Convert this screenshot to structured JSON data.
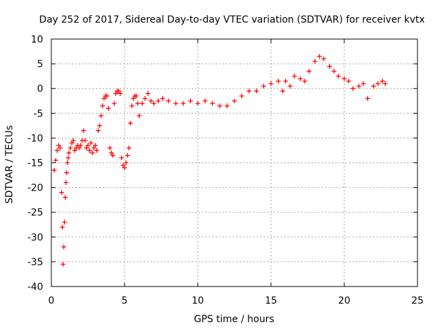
{
  "chart_data": {
    "type": "scatter",
    "title": "Day 252 of 2017, Sidereal Day-to-day VTEC variation (SDTVAR) for receiver kvtx",
    "xlabel": "GPS time / hours",
    "ylabel": "SDTVAR / TECUs",
    "xlim": [
      0,
      25
    ],
    "ylim": [
      -40,
      10
    ],
    "xticks": [
      0,
      5,
      10,
      15,
      20,
      25
    ],
    "yticks": [
      -40,
      -35,
      -30,
      -25,
      -20,
      -15,
      -10,
      -5,
      0,
      5,
      10
    ],
    "grid": true,
    "legend": "none",
    "marker": "+",
    "color": "#ff0000",
    "series": [
      {
        "name": "SDTVAR",
        "x": [
          0.2,
          0.3,
          0.4,
          0.5,
          0.6,
          0.7,
          0.75,
          0.8,
          0.85,
          0.9,
          0.95,
          1.0,
          1.05,
          1.1,
          1.15,
          1.2,
          1.3,
          1.4,
          1.5,
          1.6,
          1.7,
          1.8,
          1.9,
          2.0,
          2.1,
          2.2,
          2.3,
          2.4,
          2.5,
          2.6,
          2.7,
          2.8,
          2.9,
          3.0,
          3.1,
          3.2,
          3.3,
          3.4,
          3.5,
          3.6,
          3.7,
          3.8,
          3.9,
          4.0,
          4.1,
          4.2,
          4.3,
          4.4,
          4.5,
          4.6,
          4.7,
          4.8,
          4.9,
          5.0,
          5.1,
          5.2,
          5.3,
          5.4,
          5.5,
          5.6,
          5.7,
          5.8,
          5.9,
          6.0,
          6.2,
          6.4,
          6.6,
          6.8,
          7.0,
          7.3,
          7.6,
          8.0,
          8.5,
          9.0,
          9.5,
          10.0,
          10.5,
          11.0,
          11.5,
          12.0,
          12.5,
          13.0,
          13.5,
          14.0,
          14.5,
          15.0,
          15.5,
          15.8,
          16.0,
          16.3,
          16.6,
          17.0,
          17.3,
          17.6,
          18.0,
          18.3,
          18.6,
          19.0,
          19.3,
          19.6,
          20.0,
          20.3,
          20.6,
          21.0,
          21.3,
          21.6,
          22.0,
          22.3,
          22.6,
          22.8
        ],
        "y": [
          -16.5,
          -14.5,
          -12.5,
          -11.5,
          -12.0,
          -21.0,
          -28.0,
          -35.5,
          -32.0,
          -27.0,
          -22.0,
          -19.0,
          -17.0,
          -15.0,
          -14.0,
          -13.0,
          -12.0,
          -11.0,
          -10.5,
          -12.5,
          -12.0,
          -11.5,
          -12.0,
          -11.5,
          -10.5,
          -8.5,
          -10.5,
          -12.0,
          -11.5,
          -12.5,
          -11.0,
          -13.0,
          -12.0,
          -11.5,
          -12.5,
          -8.5,
          -7.5,
          -5.5,
          -3.5,
          -2.0,
          -1.5,
          -1.5,
          -4.0,
          -12.0,
          -13.0,
          -13.5,
          -3.0,
          -1.0,
          -0.5,
          -0.5,
          -1.0,
          -14.0,
          -15.5,
          -16.0,
          -15.0,
          -13.5,
          -12.0,
          -7.0,
          -3.5,
          -2.0,
          -1.5,
          -1.5,
          -3.0,
          -5.5,
          -3.0,
          -2.0,
          -1.0,
          -2.5,
          -3.0,
          -2.5,
          -2.0,
          -2.5,
          -3.0,
          -3.0,
          -2.5,
          -3.0,
          -2.5,
          -3.0,
          -3.5,
          -3.5,
          -2.5,
          -1.5,
          -0.5,
          -0.5,
          0.5,
          1.0,
          1.5,
          -0.5,
          1.5,
          0.5,
          2.5,
          2.0,
          1.5,
          3.5,
          5.5,
          6.5,
          6.0,
          4.5,
          3.5,
          2.5,
          2.0,
          1.5,
          0.0,
          0.5,
          1.0,
          -2.0,
          0.5,
          1.0,
          1.5,
          1.0
        ]
      }
    ]
  }
}
